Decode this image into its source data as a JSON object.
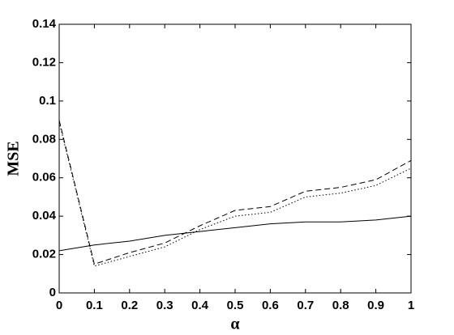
{
  "chart_data": {
    "type": "line",
    "x_label": "α",
    "y_label": "MSE",
    "x": [
      0,
      0.1,
      0.2,
      0.3,
      0.4,
      0.5,
      0.6,
      0.7,
      0.8,
      0.9,
      1
    ],
    "series": [
      {
        "color": "#000000",
        "dash": "solid",
        "values": [
          0.022,
          0.025,
          0.027,
          0.03,
          0.032,
          0.034,
          0.036,
          0.037,
          0.037,
          0.038,
          0.04
        ]
      },
      {
        "color": "#000000",
        "dash": "dashed",
        "values": [
          0.09,
          0.015,
          0.021,
          0.026,
          0.035,
          0.043,
          0.045,
          0.053,
          0.055,
          0.059,
          0.069
        ]
      },
      {
        "color": "#000000",
        "dash": "dotted",
        "values": [
          0.089,
          0.014,
          0.019,
          0.024,
          0.033,
          0.04,
          0.042,
          0.05,
          0.052,
          0.056,
          0.065
        ]
      }
    ],
    "xlim": [
      0,
      1
    ],
    "xticks": [
      0,
      0.1,
      0.2,
      0.3,
      0.4,
      0.5,
      0.6,
      0.7,
      0.8,
      0.9,
      1
    ],
    "ylim": [
      0,
      0.14
    ],
    "yticks": [
      0,
      0.02,
      0.04,
      0.06,
      0.08,
      0.1,
      0.12,
      0.14
    ],
    "grid": false
  }
}
